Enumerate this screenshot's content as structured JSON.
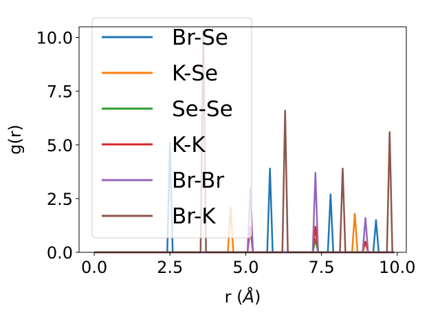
{
  "chart_data": {
    "type": "line",
    "xlabel_prefix": "r (",
    "xlabel_unit": "Å",
    "xlabel_suffix": ")",
    "ylabel": "g(r)",
    "xlim": [
      -0.5,
      10.3
    ],
    "ylim": [
      0,
      10.5
    ],
    "xticks": [
      0.0,
      2.5,
      5.0,
      7.5,
      10.0
    ],
    "xtick_labels": [
      "0.0",
      "2.5",
      "5.0",
      "7.5",
      "10.0"
    ],
    "yticks": [
      0.0,
      2.5,
      5.0,
      7.5,
      10.0
    ],
    "ytick_labels": [
      "0.0",
      "2.5",
      "5.0",
      "7.5",
      "10.0"
    ],
    "grid": false,
    "legend_position": "upper-left",
    "peak_half_width": 0.09,
    "x_range": [
      0.0,
      9.9
    ],
    "series": [
      {
        "name": "Br-Se",
        "color": "#1f77b4",
        "peaks": [
          [
            2.5,
            5.1
          ],
          [
            5.8,
            3.9
          ],
          [
            7.8,
            2.7
          ],
          [
            9.3,
            1.5
          ]
        ]
      },
      {
        "name": "K-Se",
        "color": "#ff7f0e",
        "peaks": [
          [
            4.5,
            2.1
          ],
          [
            8.6,
            1.8
          ]
        ]
      },
      {
        "name": "Se-Se",
        "color": "#2ca02c",
        "peaks": [
          [
            7.3,
            0.6
          ]
        ]
      },
      {
        "name": "K-K",
        "color": "#d62728",
        "peaks": [
          [
            5.15,
            1.2
          ],
          [
            7.3,
            1.2
          ],
          [
            8.95,
            0.5
          ]
        ]
      },
      {
        "name": "Br-Br",
        "color": "#9467bd",
        "peaks": [
          [
            5.15,
            3.0
          ],
          [
            7.3,
            3.7
          ],
          [
            8.95,
            1.6
          ]
        ]
      },
      {
        "name": "Br-K",
        "color": "#8c564b",
        "peaks": [
          [
            3.6,
            10.3
          ],
          [
            6.3,
            6.6
          ],
          [
            8.2,
            3.9
          ],
          [
            9.75,
            5.6
          ]
        ]
      }
    ]
  }
}
